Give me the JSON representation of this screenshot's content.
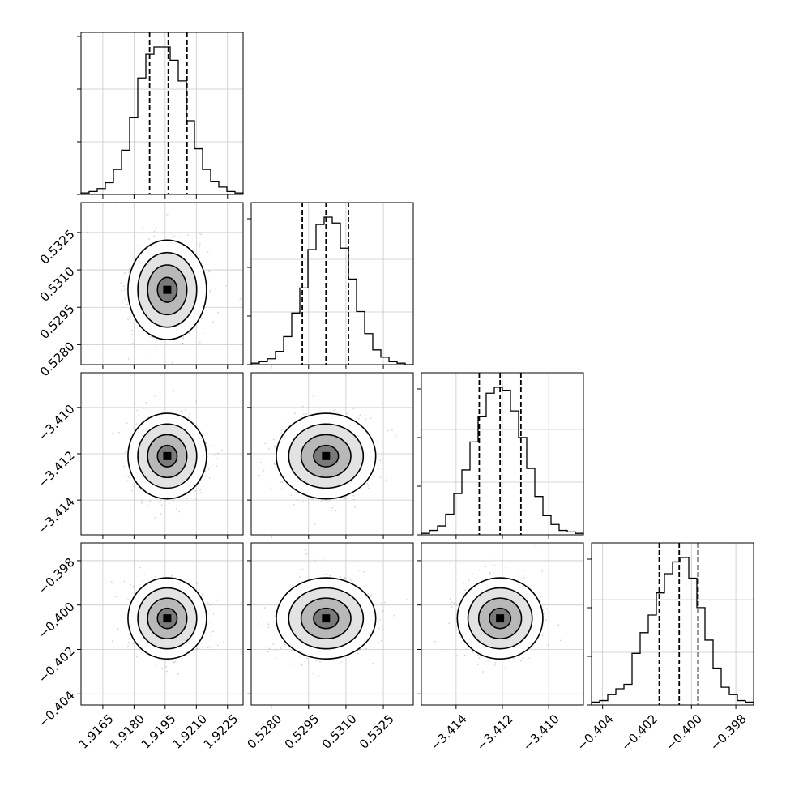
{
  "chart_data": {
    "type": "corner",
    "parameters": [
      {
        "index": 0,
        "mean": 1.9196,
        "sd": 0.0009,
        "q16": 1.91875,
        "q50": 1.91965,
        "q84": 1.92055,
        "range": [
          1.91545,
          1.92325
        ],
        "ticks": [
          1.9165,
          1.918,
          1.9195,
          1.921,
          1.9225
        ],
        "tick_labels": [
          "1.9165",
          "1.9180",
          "1.9195",
          "1.9210",
          "1.9225"
        ]
      },
      {
        "index": 1,
        "mean": 0.5302,
        "sd": 0.00095,
        "q16": 0.52925,
        "q50": 0.5302,
        "q84": 0.5311,
        "range": [
          0.5272,
          0.5337
        ],
        "ticks": [
          0.528,
          0.5295,
          0.531,
          0.5325
        ],
        "tick_labels": [
          "0.5280",
          "0.5295",
          "0.5310",
          "0.5325"
        ]
      },
      {
        "index": 2,
        "mean": -3.4121,
        "sd": 0.00088,
        "q16": -3.413,
        "q50": -3.4121,
        "q84": -3.4112,
        "range": [
          -3.4155,
          -3.4085
        ],
        "ticks": [
          -3.414,
          -3.412,
          -3.41
        ],
        "tick_labels": [
          "−3.414",
          "−3.412",
          "−3.410"
        ]
      },
      {
        "index": 3,
        "mean": -0.4006,
        "sd": 0.00087,
        "q16": -0.40145,
        "q50": -0.40055,
        "q84": -0.3997,
        "range": [
          -0.4045,
          -0.3972
        ],
        "ticks": [
          -0.404,
          -0.402,
          -0.4,
          -0.398
        ],
        "tick_labels": [
          "−0.404",
          "−0.402",
          "−0.400",
          "−0.398"
        ]
      }
    ],
    "histograms": [
      {
        "param": 0,
        "counts": [
          1,
          2,
          4,
          8,
          17,
          30,
          52,
          79,
          95,
          100,
          100,
          91,
          77,
          50,
          31,
          17,
          9,
          5,
          2,
          1
        ]
      },
      {
        "param": 1,
        "counts": [
          1,
          2,
          4,
          9,
          19,
          35,
          52,
          78,
          95,
          100,
          96,
          79,
          58,
          36,
          21,
          10,
          5,
          2,
          1,
          0
        ]
      },
      {
        "param": 2,
        "counts": [
          1,
          3,
          6,
          14,
          28,
          44,
          63,
          80,
          96,
          100,
          98,
          84,
          66,
          45,
          26,
          13,
          7,
          3,
          2,
          1
        ]
      },
      {
        "param": 3,
        "counts": [
          2,
          3,
          7,
          11,
          14,
          35,
          49,
          61,
          76,
          89,
          97,
          100,
          86,
          66,
          44,
          25,
          12,
          7,
          3,
          2
        ]
      }
    ],
    "contour_levels_sigma": [
      0.5,
      1.0,
      1.5,
      2.0
    ],
    "quantile_lines": "dashed",
    "grid": true,
    "xlabel": "",
    "ylabel": "",
    "title": ""
  }
}
